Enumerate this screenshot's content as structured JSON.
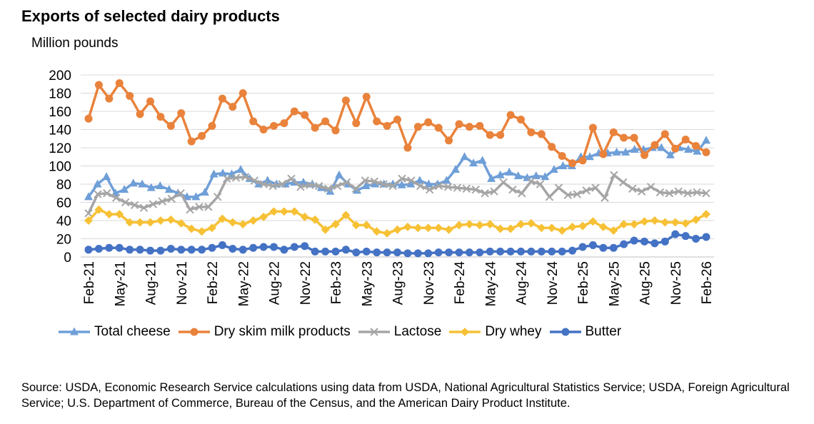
{
  "title": "Exports of selected dairy products",
  "source": "Source: USDA, Economic Research Service calculations using data from USDA, National Agricultural Statistics Service; USDA, Foreign Agricultural Service; U.S. Department of Commerce, Bureau of the Census, and the American Dairy Product Institute.",
  "chart_data": {
    "type": "line",
    "title": "Exports of selected dairy products",
    "ylabel": "Million pounds",
    "xlabel": "",
    "ylim": [
      0,
      200
    ],
    "yticks": [
      0,
      20,
      40,
      60,
      80,
      100,
      120,
      140,
      160,
      180,
      200
    ],
    "grid": true,
    "legend_position": "bottom",
    "x_range": [
      "Feb-21",
      "Feb-26"
    ],
    "x_tick_labels": [
      "Feb-21",
      "May-21",
      "Aug-21",
      "Nov-21",
      "Feb-22",
      "May-22",
      "Aug-22",
      "Nov-22",
      "Feb-23",
      "May-23",
      "Aug-23",
      "Nov-23",
      "Feb-24",
      "May-24",
      "Aug-24",
      "Nov-24",
      "Feb-25",
      "May-25",
      "Aug-25",
      "Nov-25",
      "Feb-26"
    ],
    "series": [
      {
        "name": "Total cheese",
        "color": "#6f9fd8",
        "marker": "triangle",
        "values": [
          66,
          80,
          88,
          70,
          74,
          81,
          80,
          76,
          78,
          74,
          70,
          66,
          66,
          71,
          91,
          92,
          91,
          96,
          86,
          80,
          84,
          80,
          80,
          82,
          82,
          80,
          76,
          72,
          90,
          80,
          73,
          78,
          80,
          80,
          80,
          79,
          80,
          84,
          80,
          80,
          84,
          96,
          110,
          103,
          106,
          86,
          90,
          93,
          89,
          87,
          89,
          88,
          96,
          100,
          100,
          110,
          110,
          114,
          114,
          115,
          115,
          118,
          118,
          120,
          120,
          112,
          120,
          118,
          116,
          128
        ]
      },
      {
        "name": "Dry skim milk products",
        "color": "#e9823b",
        "marker": "circle",
        "values": [
          152,
          189,
          174,
          191,
          177,
          157,
          171,
          154,
          144,
          158,
          127,
          133,
          144,
          174,
          165,
          180,
          149,
          140,
          144,
          147,
          160,
          156,
          142,
          149,
          139,
          172,
          147,
          176,
          149,
          144,
          151,
          120,
          143,
          148,
          142,
          128,
          146,
          143,
          144,
          134,
          134,
          156,
          151,
          137,
          135,
          121,
          111,
          103,
          106,
          142,
          113,
          137,
          131,
          131,
          112,
          123,
          135,
          119,
          129,
          122,
          115
        ]
      },
      {
        "name": "Lactose",
        "color": "#a5a5a5",
        "marker": "x",
        "values": [
          48,
          69,
          70,
          65,
          60,
          57,
          54,
          58,
          61,
          64,
          70,
          52,
          55,
          55,
          66,
          86,
          87,
          88,
          84,
          80,
          78,
          80,
          86,
          77,
          79,
          78,
          75,
          78,
          82,
          75,
          84,
          83,
          80,
          78,
          86,
          84,
          78,
          74,
          78,
          77,
          76,
          75,
          74,
          70,
          72,
          82,
          74,
          70,
          83,
          80,
          66,
          76,
          68,
          69,
          73,
          76,
          65,
          90,
          82,
          75,
          72,
          77,
          71,
          70,
          72,
          70,
          71,
          70
        ]
      },
      {
        "name": "Dry whey",
        "color": "#f7c136",
        "marker": "diamond",
        "values": [
          40,
          52,
          47,
          47,
          38,
          38,
          38,
          40,
          41,
          37,
          31,
          28,
          32,
          42,
          38,
          36,
          40,
          44,
          50,
          50,
          50,
          44,
          41,
          30,
          36,
          46,
          35,
          35,
          28,
          26,
          30,
          33,
          32,
          32,
          32,
          30,
          35,
          36,
          35,
          36,
          31,
          31,
          36,
          37,
          32,
          32,
          29,
          33,
          34,
          39,
          33,
          29,
          36,
          36,
          39,
          40,
          38,
          38,
          37,
          41,
          47
        ]
      },
      {
        "name": "Butter",
        "color": "#4472c4",
        "marker": "circle",
        "values": [
          8,
          9,
          10,
          10,
          8,
          8,
          7,
          7,
          9,
          8,
          8,
          8,
          10,
          13,
          9,
          8,
          10,
          11,
          11,
          8,
          11,
          12,
          6,
          6,
          6,
          8,
          5,
          6,
          5,
          5,
          5,
          4,
          4,
          4,
          5,
          5,
          5,
          5,
          5,
          6,
          6,
          6,
          6,
          6,
          6,
          6,
          6,
          7,
          11,
          13,
          10,
          10,
          14,
          18,
          17,
          15,
          17,
          25,
          23,
          20,
          22
        ]
      }
    ]
  }
}
